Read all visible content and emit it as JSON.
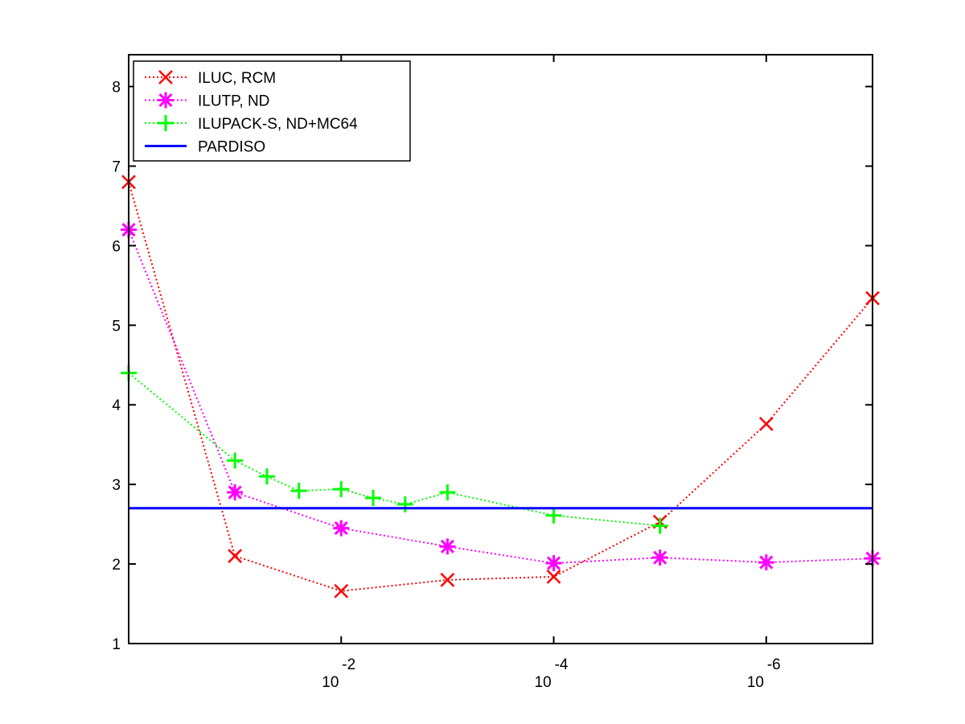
{
  "chart_data": {
    "type": "line",
    "title": "",
    "xlabel": "",
    "ylabel": "",
    "x_scale": "log",
    "x_reversed": true,
    "xlim": [
      1,
      1e-07
    ],
    "ylim": [
      1,
      8.4
    ],
    "grid": false,
    "legend_position": "top-left",
    "y_ticks": [
      1,
      2,
      3,
      4,
      5,
      6,
      7,
      8
    ],
    "x_ticks": [
      {
        "value": 0.01,
        "base": "10",
        "exponent": "-2"
      },
      {
        "value": 0.0001,
        "base": "10",
        "exponent": "-4"
      },
      {
        "value": 1e-06,
        "base": "10",
        "exponent": "-6"
      }
    ],
    "series": [
      {
        "name": "ILUC, RCM",
        "color": "#ff0000",
        "marker": "x",
        "line_style": "dotted",
        "x": [
          1,
          0.1,
          0.01,
          0.001,
          0.0001,
          1e-05,
          1e-06,
          1e-07
        ],
        "y": [
          6.8,
          2.1,
          1.66,
          1.8,
          1.84,
          2.53,
          3.76,
          5.34
        ]
      },
      {
        "name": "ILUTP,  ND",
        "color": "#ff00ff",
        "marker": "asterisk",
        "line_style": "dotted",
        "x": [
          1,
          0.1,
          0.01,
          0.001,
          0.0001,
          1e-05,
          1e-06,
          1e-07
        ],
        "y": [
          6.2,
          2.9,
          2.45,
          2.22,
          2.01,
          2.08,
          2.02,
          2.07
        ]
      },
      {
        "name": "ILUPACK-S, ND+MC64",
        "color": "#00ff00",
        "marker": "plus",
        "line_style": "dotted",
        "x": [
          1,
          0.1,
          0.05,
          0.025,
          0.01,
          0.005,
          0.0025,
          0.001,
          0.0001,
          1e-05
        ],
        "y": [
          4.4,
          3.3,
          3.1,
          2.92,
          2.94,
          2.83,
          2.75,
          2.9,
          2.61,
          2.48
        ]
      },
      {
        "name": "PARDISO",
        "color": "#0000ff",
        "marker": "none",
        "line_style": "solid",
        "x": [
          1,
          1e-07
        ],
        "y": [
          2.7,
          2.7
        ]
      }
    ]
  }
}
